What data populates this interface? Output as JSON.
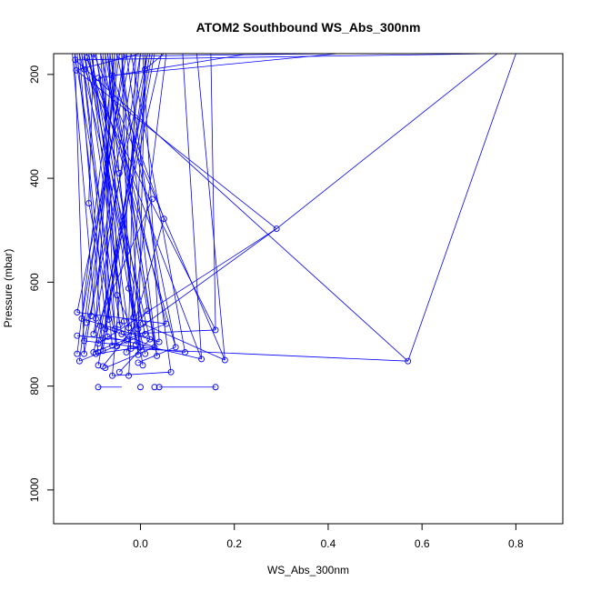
{
  "chart_data": {
    "type": "line",
    "title": "ATOM2 Southbound WS_Abs_300nm",
    "xlabel": "WS_Abs_300nm",
    "ylabel": "Pressure (mbar)",
    "xlim": [
      -0.185,
      0.9
    ],
    "ylim": [
      1065,
      160
    ],
    "y_reversed": true,
    "x_ticks": [
      "0.0",
      "0.2",
      "0.4",
      "0.6",
      "0.8"
    ],
    "x_tick_values": [
      0,
      0.2,
      0.4,
      0.6,
      0.8
    ],
    "y_ticks": [
      "200",
      "400",
      "600",
      "800",
      "1000"
    ],
    "y_tick_values": [
      200,
      400,
      600,
      800,
      1000
    ],
    "grid": false,
    "legend": "none",
    "color": "#0000ff",
    "points": [
      [
        -0.139,
        172
      ],
      [
        -0.137,
        192
      ],
      [
        -0.12,
        190
      ],
      [
        -0.115,
        168
      ],
      [
        -0.1,
        160
      ],
      [
        -0.09,
        207
      ],
      [
        -0.06,
        202
      ],
      [
        -0.04,
        165
      ],
      [
        0.01,
        190
      ],
      [
        -0.045,
        390
      ],
      [
        -0.11,
        448
      ],
      [
        0.025,
        440
      ],
      [
        0.05,
        478
      ],
      [
        0.29,
        497
      ],
      [
        -0.05,
        625
      ],
      [
        -0.025,
        612
      ],
      [
        -0.135,
        658
      ],
      [
        -0.125,
        670
      ],
      [
        -0.115,
        678
      ],
      [
        -0.105,
        665
      ],
      [
        -0.095,
        670
      ],
      [
        -0.085,
        684
      ],
      [
        -0.075,
        690
      ],
      [
        -0.068,
        672
      ],
      [
        -0.055,
        690
      ],
      [
        -0.045,
        682
      ],
      [
        -0.035,
        675
      ],
      [
        -0.025,
        688
      ],
      [
        -0.015,
        668
      ],
      [
        -0.005,
        690
      ],
      [
        0.005,
        680
      ],
      [
        0.015,
        655
      ],
      [
        -0.135,
        703
      ],
      [
        -0.12,
        713
      ],
      [
        -0.1,
        700
      ],
      [
        -0.09,
        718
      ],
      [
        -0.08,
        708
      ],
      [
        -0.07,
        705
      ],
      [
        -0.05,
        723
      ],
      [
        -0.04,
        700
      ],
      [
        -0.03,
        712
      ],
      [
        -0.02,
        728
      ],
      [
        -0.01,
        720
      ],
      [
        0.0,
        725
      ],
      [
        0.01,
        700
      ],
      [
        0.02,
        710
      ],
      [
        0.03,
        725
      ],
      [
        0.04,
        715
      ],
      [
        0.055,
        680
      ],
      [
        0.075,
        725
      ],
      [
        0.095,
        735
      ],
      [
        0.16,
        692
      ],
      [
        -0.135,
        738
      ],
      [
        -0.12,
        738
      ],
      [
        -0.1,
        735
      ],
      [
        -0.095,
        738
      ],
      [
        -0.09,
        735
      ],
      [
        -0.08,
        732
      ],
      [
        -0.06,
        722
      ],
      [
        -0.03,
        735
      ],
      [
        -0.005,
        740
      ],
      [
        0.01,
        738
      ],
      [
        0.035,
        742
      ],
      [
        0.13,
        748
      ],
      [
        0.18,
        750
      ],
      [
        0.57,
        752
      ],
      [
        -0.13,
        752
      ],
      [
        -0.09,
        760
      ],
      [
        -0.08,
        762
      ],
      [
        -0.075,
        765
      ],
      [
        -0.06,
        780
      ],
      [
        -0.045,
        773
      ],
      [
        -0.025,
        780
      ],
      [
        -0.005,
        755
      ],
      [
        0.005,
        760
      ],
      [
        0.065,
        773
      ],
      [
        -0.09,
        802
      ],
      [
        0.0,
        802
      ],
      [
        0.03,
        802
      ],
      [
        0.04,
        802
      ],
      [
        0.16,
        802
      ]
    ],
    "segments": [
      [
        [
          -0.139,
          172
        ],
        [
          0.57,
          752
        ]
      ],
      [
        [
          -0.137,
          192
        ],
        [
          0.29,
          497
        ]
      ],
      [
        [
          -0.12,
          190
        ],
        [
          0.16,
          692
        ]
      ],
      [
        [
          -0.115,
          168
        ],
        [
          0.13,
          748
        ]
      ],
      [
        [
          -0.1,
          160
        ],
        [
          0.18,
          750
        ]
      ],
      [
        [
          -0.09,
          207
        ],
        [
          0.075,
          725
        ]
      ],
      [
        [
          -0.06,
          202
        ],
        [
          0.05,
          478
        ]
      ],
      [
        [
          -0.04,
          165
        ],
        [
          0.035,
          742
        ]
      ],
      [
        [
          0.01,
          190
        ],
        [
          -0.025,
          780
        ]
      ],
      [
        [
          -0.045,
          390
        ],
        [
          -0.005,
          740
        ]
      ],
      [
        [
          -0.11,
          448
        ],
        [
          -0.05,
          723
        ]
      ],
      [
        [
          0.025,
          440
        ],
        [
          -0.1,
          700
        ]
      ],
      [
        [
          0.05,
          478
        ],
        [
          -0.03,
          735
        ]
      ],
      [
        [
          0.29,
          497
        ],
        [
          -0.005,
          690
        ]
      ],
      [
        [
          0.29,
          497
        ],
        [
          -0.09,
          718
        ]
      ],
      [
        [
          -0.05,
          625
        ],
        [
          0.0,
          725
        ]
      ],
      [
        [
          -0.025,
          612
        ],
        [
          0.01,
          738
        ]
      ],
      [
        [
          0.57,
          752
        ],
        [
          -0.02,
          728
        ]
      ],
      [
        [
          0.16,
          692
        ],
        [
          -0.04,
          700
        ]
      ],
      [
        [
          0.13,
          748
        ],
        [
          -0.07,
          705
        ]
      ],
      [
        [
          0.18,
          750
        ],
        [
          0.005,
          680
        ]
      ],
      [
        [
          -0.09,
          802
        ],
        [
          -0.04,
          802
        ]
      ],
      [
        [
          0.04,
          802
        ],
        [
          0.16,
          802
        ]
      ],
      [
        [
          -0.06,
          780
        ],
        [
          0.065,
          773
        ]
      ],
      [
        [
          -0.135,
          658
        ],
        [
          0.055,
          680
        ]
      ],
      [
        [
          -0.12,
          713
        ],
        [
          0.095,
          735
        ]
      ],
      [
        [
          -0.075,
          765
        ],
        [
          0.03,
          725
        ]
      ],
      [
        [
          -0.045,
          773
        ],
        [
          0.02,
          710
        ]
      ],
      [
        [
          -0.125,
          670
        ],
        [
          0.04,
          715
        ]
      ],
      [
        [
          -0.13,
          752
        ],
        [
          0.01,
          700
        ]
      ],
      [
        [
          -0.08,
          762
        ],
        [
          0.015,
          655
        ]
      ],
      [
        [
          -0.005,
          755
        ],
        [
          0.075,
          725
        ]
      ],
      [
        [
          -0.1,
          735
        ],
        [
          0.055,
          680
        ]
      ],
      [
        [
          -0.135,
          703
        ],
        [
          -0.03,
          712
        ]
      ],
      [
        [
          -0.085,
          684
        ],
        [
          0.03,
          725
        ]
      ],
      [
        [
          -0.095,
          738
        ],
        [
          0.0,
          725
        ]
      ],
      [
        [
          -0.145,
          160
        ],
        [
          -0.09,
          738
        ]
      ],
      [
        [
          -0.14,
          160
        ],
        [
          -0.12,
          738
        ]
      ],
      [
        [
          -0.13,
          160
        ],
        [
          -0.08,
          732
        ]
      ],
      [
        [
          -0.125,
          160
        ],
        [
          -0.06,
          722
        ]
      ],
      [
        [
          -0.12,
          160
        ],
        [
          -0.035,
          675
        ]
      ],
      [
        [
          -0.11,
          160
        ],
        [
          -0.015,
          668
        ]
      ],
      [
        [
          -0.105,
          160
        ],
        [
          -0.005,
          690
        ]
      ],
      [
        [
          -0.095,
          160
        ],
        [
          0.005,
          760
        ]
      ],
      [
        [
          -0.085,
          160
        ],
        [
          -0.045,
          682
        ]
      ],
      [
        [
          -0.08,
          160
        ],
        [
          -0.055,
          690
        ]
      ],
      [
        [
          -0.075,
          160
        ],
        [
          -0.068,
          672
        ]
      ],
      [
        [
          -0.07,
          160
        ],
        [
          -0.01,
          720
        ]
      ],
      [
        [
          -0.065,
          160
        ],
        [
          -0.075,
          690
        ]
      ],
      [
        [
          -0.055,
          160
        ],
        [
          -0.095,
          670
        ]
      ],
      [
        [
          -0.05,
          160
        ],
        [
          -0.105,
          665
        ]
      ],
      [
        [
          -0.035,
          160
        ],
        [
          -0.115,
          678
        ]
      ],
      [
        [
          -0.03,
          160
        ],
        [
          -0.125,
          670
        ]
      ],
      [
        [
          -0.02,
          160
        ],
        [
          -0.135,
          658
        ]
      ],
      [
        [
          -0.01,
          160
        ],
        [
          -0.025,
          688
        ]
      ],
      [
        [
          0.0,
          160
        ],
        [
          -0.06,
          780
        ]
      ],
      [
        [
          0.02,
          160
        ],
        [
          -0.08,
          708
        ]
      ],
      [
        [
          0.03,
          160
        ],
        [
          -0.09,
          760
        ]
      ],
      [
        [
          0.045,
          160
        ],
        [
          -0.1,
          735
        ]
      ],
      [
        [
          -0.06,
          160
        ],
        [
          -0.05,
          625
        ]
      ],
      [
        [
          -0.04,
          160
        ],
        [
          -0.025,
          612
        ]
      ],
      [
        [
          -0.1,
          160
        ],
        [
          -0.11,
          448
        ]
      ],
      [
        [
          -0.115,
          160
        ],
        [
          -0.045,
          390
        ]
      ],
      [
        [
          0.015,
          160
        ],
        [
          -0.12,
          713
        ]
      ],
      [
        [
          -0.09,
          207
        ],
        [
          0.22,
          162
        ]
      ],
      [
        [
          -0.06,
          202
        ],
        [
          0.42,
          160
        ]
      ],
      [
        [
          -0.139,
          172
        ],
        [
          0.75,
          160
        ]
      ],
      [
        [
          -0.04,
          165
        ],
        [
          0.42,
          160
        ]
      ],
      [
        [
          0.01,
          190
        ],
        [
          0.05,
          160
        ]
      ],
      [
        [
          -0.137,
          192
        ],
        [
          0.0,
          160
        ]
      ],
      [
        [
          0.57,
          752
        ],
        [
          0.8,
          160
        ]
      ],
      [
        [
          0.29,
          497
        ],
        [
          0.76,
          160
        ]
      ],
      [
        [
          0.16,
          692
        ],
        [
          0.15,
          160
        ]
      ],
      [
        [
          0.13,
          748
        ],
        [
          0.09,
          160
        ]
      ],
      [
        [
          -0.015,
          668
        ],
        [
          0.055,
          160
        ]
      ],
      [
        [
          0.035,
          742
        ],
        [
          -0.07,
          160
        ]
      ],
      [
        [
          -0.005,
          740
        ],
        [
          0.01,
          160
        ]
      ],
      [
        [
          0.075,
          725
        ],
        [
          -0.05,
          160
        ]
      ],
      [
        [
          0.095,
          735
        ],
        [
          -0.02,
          160
        ]
      ],
      [
        [
          0.18,
          750
        ],
        [
          0.12,
          160
        ]
      ],
      [
        [
          0.04,
          715
        ],
        [
          0.005,
          160
        ]
      ],
      [
        [
          0.065,
          773
        ],
        [
          -0.03,
          160
        ]
      ],
      [
        [
          0.02,
          710
        ],
        [
          -0.12,
          160
        ]
      ],
      [
        [
          0.01,
          700
        ],
        [
          -0.13,
          160
        ]
      ],
      [
        [
          0.055,
          680
        ],
        [
          -0.085,
          160
        ]
      ],
      [
        [
          0.005,
          680
        ],
        [
          -0.095,
          160
        ]
      ],
      [
        [
          0.03,
          725
        ],
        [
          -0.065,
          160
        ]
      ],
      [
        [
          0.015,
          655
        ],
        [
          -0.075,
          160
        ]
      ],
      [
        [
          0.0,
          725
        ],
        [
          -0.04,
          160
        ]
      ],
      [
        [
          -0.02,
          728
        ],
        [
          -0.105,
          160
        ]
      ],
      [
        [
          -0.03,
          712
        ],
        [
          -0.11,
          160
        ]
      ],
      [
        [
          -0.04,
          700
        ],
        [
          -0.14,
          160
        ]
      ],
      [
        [
          -0.05,
          723
        ],
        [
          -0.125,
          160
        ]
      ],
      [
        [
          -0.07,
          705
        ],
        [
          -0.135,
          160
        ]
      ],
      [
        [
          -0.1,
          700
        ],
        [
          0.0,
          160
        ]
      ],
      [
        [
          -0.08,
          732
        ],
        [
          0.015,
          160
        ]
      ],
      [
        [
          -0.09,
          718
        ],
        [
          0.025,
          160
        ]
      ],
      [
        [
          -0.12,
          738
        ],
        [
          -0.01,
          160
        ]
      ],
      [
        [
          -0.135,
          738
        ],
        [
          -0.055,
          160
        ]
      ],
      [
        [
          -0.13,
          752
        ],
        [
          -0.045,
          160
        ]
      ]
    ]
  }
}
